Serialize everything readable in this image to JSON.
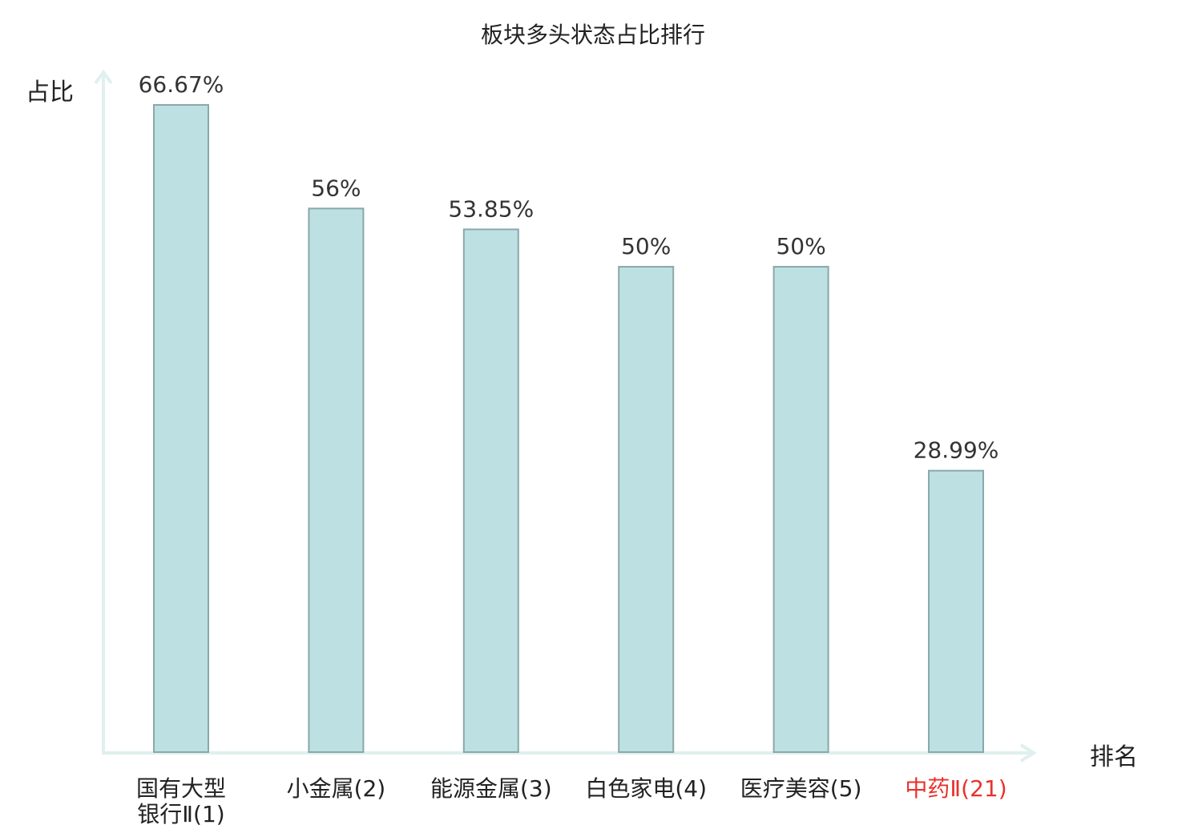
{
  "chart_data": {
    "type": "bar",
    "title": "板块多头状态占比排行",
    "ylabel": "占比",
    "xlabel": "排名",
    "ylim": [
      0,
      66.67
    ],
    "grid": false,
    "legend": "none",
    "categories": [
      {
        "lines": [
          "国有大型",
          "银行Ⅱ(1)"
        ],
        "highlight": false
      },
      {
        "lines": [
          "小金属(2)"
        ],
        "highlight": false
      },
      {
        "lines": [
          "能源金属(3)"
        ],
        "highlight": false
      },
      {
        "lines": [
          "白色家电(4)"
        ],
        "highlight": false
      },
      {
        "lines": [
          "医疗美容(5)"
        ],
        "highlight": false
      },
      {
        "lines": [
          "中药Ⅱ(21)"
        ],
        "highlight": true
      }
    ],
    "values": [
      66.67,
      56,
      53.85,
      50,
      50,
      28.99
    ],
    "value_labels": [
      "66.67%",
      "56%",
      "53.85%",
      "50%",
      "50%",
      "28.99%"
    ]
  },
  "colors": {
    "bar_fill": "#bde0e3",
    "bar_stroke": "#8aa8aa",
    "axis": "#dff0ee",
    "text": "#333333",
    "highlight_text": "#e8322c"
  }
}
